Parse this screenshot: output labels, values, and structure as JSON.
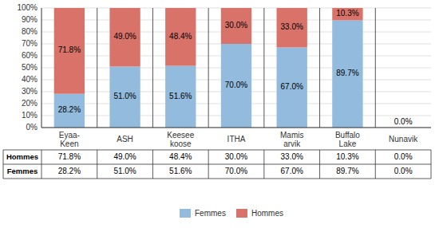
{
  "chart_data": {
    "type": "bar",
    "stacked": true,
    "categories": [
      "Eyaa-\nKeen",
      "ASH",
      "Keesee\nkoose",
      "ITHA",
      "Mamis\narvik",
      "Buffalo\nLake",
      "Nunavik"
    ],
    "series": [
      {
        "name": "Femmes",
        "color": "#92BBDD",
        "values": [
          28.2,
          51.0,
          51.6,
          70.0,
          67.0,
          89.7,
          0.0
        ],
        "value_labels": [
          "28.2%",
          "51.0%",
          "51.6%",
          "70.0%",
          "67.0%",
          "89.7%",
          null
        ]
      },
      {
        "name": "Hommes",
        "color": "#D9736A",
        "values": [
          71.8,
          49.0,
          48.4,
          30.0,
          33.0,
          10.3,
          0.0
        ],
        "value_labels": [
          "71.8%",
          "49.0%",
          "48.4%",
          "30.0%",
          "33.0%",
          "10.3%",
          null
        ]
      }
    ],
    "annotations": [
      {
        "text": "0.0%",
        "category": "Nunavik"
      }
    ],
    "table": [
      [
        "Hommes",
        "71.8%",
        "49.0%",
        "48.4%",
        "30.0%",
        "33.0%",
        "10.3%",
        "0.0%"
      ],
      [
        "Femmes",
        "28.2%",
        "51.0%",
        "51.6%",
        "70.0%",
        "67.0%",
        "89.7%",
        "0.0%"
      ]
    ],
    "ylim": [
      0,
      100
    ],
    "yticks": [
      {
        "value": 0,
        "label": "0%"
      },
      {
        "value": 10,
        "label": "10%"
      },
      {
        "value": 20,
        "label": "20%"
      },
      {
        "value": 30,
        "label": "30%"
      },
      {
        "value": 40,
        "label": "40%"
      },
      {
        "value": 50,
        "label": "50%"
      },
      {
        "value": 60,
        "label": "60%"
      },
      {
        "value": 70,
        "label": "70%"
      },
      {
        "value": 80,
        "label": "80%"
      },
      {
        "value": 90,
        "label": "90%"
      },
      {
        "value": 100,
        "label": "100%"
      }
    ],
    "grid": true,
    "data_labels": true,
    "legend": "bottom"
  }
}
